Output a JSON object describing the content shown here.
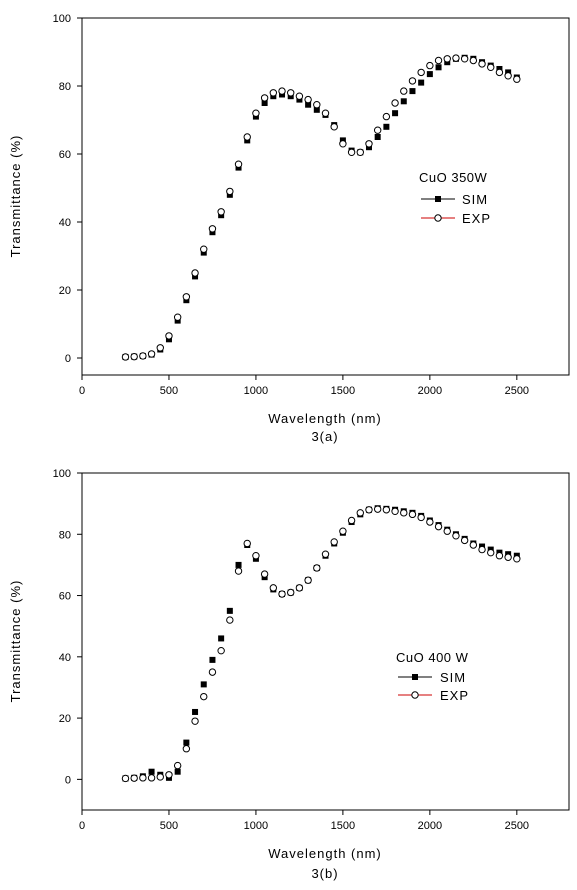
{
  "chart_data": [
    {
      "type": "scatter",
      "caption": "3(a)",
      "xlabel": "Wavelength (nm)",
      "ylabel": "Transmittance (%)",
      "xlim": [
        0,
        2800
      ],
      "ylim": [
        -5,
        100
      ],
      "xticks": [
        0,
        500,
        1000,
        1500,
        2000,
        2500
      ],
      "yticks": [
        0,
        20,
        40,
        60,
        80,
        100
      ],
      "legend_title": "CuO 350W",
      "legend_position": "right",
      "grid": false,
      "series": [
        {
          "name": "SIM",
          "marker": "filled-square",
          "color": "#000000",
          "x": [
            250,
            300,
            350,
            400,
            450,
            500,
            550,
            600,
            650,
            700,
            750,
            800,
            850,
            900,
            950,
            1000,
            1050,
            1100,
            1150,
            1200,
            1250,
            1300,
            1350,
            1400,
            1450,
            1500,
            1550,
            1600,
            1650,
            1700,
            1750,
            1800,
            1850,
            1900,
            1950,
            2000,
            2050,
            2100,
            2150,
            2200,
            2250,
            2300,
            2350,
            2400,
            2450,
            2500
          ],
          "values": [
            0.3,
            0.4,
            0.6,
            1.0,
            2.5,
            5.5,
            11,
            17,
            24,
            31,
            37,
            42,
            48,
            56,
            64,
            71,
            75,
            77,
            77.5,
            77,
            76,
            74.5,
            73,
            71.5,
            68.5,
            64,
            61,
            60.5,
            62,
            65,
            68,
            72,
            75.5,
            78.5,
            81,
            83.5,
            85.5,
            87,
            88,
            88.3,
            88,
            87,
            86,
            85,
            84,
            82.5
          ]
        },
        {
          "name": "EXP",
          "marker": "open-circle",
          "color": "#000000",
          "x": [
            250,
            300,
            350,
            400,
            450,
            500,
            550,
            600,
            650,
            700,
            750,
            800,
            850,
            900,
            950,
            1000,
            1050,
            1100,
            1150,
            1200,
            1250,
            1300,
            1350,
            1400,
            1450,
            1500,
            1550,
            1600,
            1650,
            1700,
            1750,
            1800,
            1850,
            1900,
            1950,
            2000,
            2050,
            2100,
            2150,
            2200,
            2250,
            2300,
            2350,
            2400,
            2450,
            2500
          ],
          "values": [
            0.3,
            0.4,
            0.6,
            1.2,
            3.0,
            6.5,
            12,
            18,
            25,
            32,
            38,
            43,
            49,
            57,
            65,
            72,
            76.5,
            78,
            78.5,
            78,
            77,
            76,
            74.5,
            72,
            68,
            63,
            60.5,
            60.5,
            63,
            67,
            71,
            75,
            78.5,
            81.5,
            84,
            86,
            87.5,
            88,
            88.2,
            88,
            87.5,
            86.5,
            85.5,
            84,
            83,
            82
          ]
        }
      ]
    },
    {
      "type": "scatter",
      "caption": "3(b)",
      "xlabel": "Wavelength (nm)",
      "ylabel": "Transmittance (%)",
      "xlim": [
        0,
        2800
      ],
      "ylim": [
        -10,
        100
      ],
      "xticks": [
        0,
        500,
        1000,
        1500,
        2000,
        2500
      ],
      "yticks": [
        0,
        20,
        40,
        60,
        80,
        100
      ],
      "legend_title": "CuO 400 W",
      "legend_position": "right",
      "grid": false,
      "series": [
        {
          "name": "SIM",
          "marker": "filled-square",
          "color": "#000000",
          "x": [
            250,
            300,
            350,
            400,
            450,
            500,
            550,
            600,
            650,
            700,
            750,
            800,
            850,
            900,
            950,
            1000,
            1050,
            1100,
            1150,
            1200,
            1250,
            1300,
            1350,
            1400,
            1450,
            1500,
            1550,
            1600,
            1650,
            1700,
            1750,
            1800,
            1850,
            1900,
            1950,
            2000,
            2050,
            2100,
            2150,
            2200,
            2250,
            2300,
            2350,
            2400,
            2450,
            2500
          ],
          "values": [
            0.3,
            0.5,
            1.0,
            2.5,
            1.5,
            0.5,
            2.5,
            12,
            22,
            31,
            39,
            46,
            55,
            70,
            76.5,
            72,
            66,
            62,
            60.5,
            61,
            62.5,
            65,
            69,
            73,
            77,
            80.5,
            84,
            86.5,
            88,
            88.5,
            88.3,
            88,
            87.5,
            87,
            86,
            84.5,
            83,
            81.5,
            80,
            78.5,
            77,
            76,
            75,
            74,
            73.5,
            73
          ]
        },
        {
          "name": "EXP",
          "marker": "open-circle",
          "color": "#000000",
          "x": [
            250,
            300,
            350,
            400,
            450,
            500,
            550,
            600,
            650,
            700,
            750,
            800,
            850,
            900,
            950,
            1000,
            1050,
            1100,
            1150,
            1200,
            1250,
            1300,
            1350,
            1400,
            1450,
            1500,
            1550,
            1600,
            1650,
            1700,
            1750,
            1800,
            1850,
            1900,
            1950,
            2000,
            2050,
            2100,
            2150,
            2200,
            2250,
            2300,
            2350,
            2400,
            2450,
            2500
          ],
          "values": [
            0.3,
            0.4,
            0.5,
            0.5,
            0.8,
            1.5,
            4.5,
            10,
            19,
            27,
            35,
            42,
            52,
            68,
            77,
            73,
            67,
            62.5,
            60.5,
            61,
            62.5,
            65,
            69,
            73.5,
            77.5,
            81,
            84.5,
            87,
            88,
            88.2,
            88,
            87.5,
            87,
            86.5,
            85.5,
            84,
            82.5,
            81,
            79.5,
            78,
            76.5,
            75,
            74,
            73,
            72.5,
            72
          ]
        }
      ]
    }
  ]
}
